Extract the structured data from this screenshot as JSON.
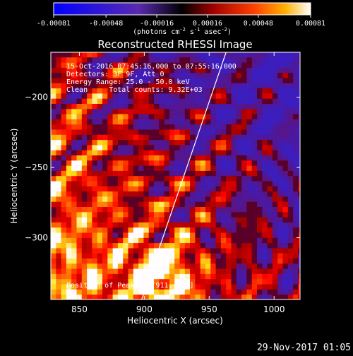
{
  "window": {
    "timestamp": "29-Nov-2017 01:05"
  },
  "colorbar": {
    "ticks": [
      "-0.00081",
      "-0.00048",
      "-0.00016",
      "0.00016",
      "0.00048",
      "0.00081"
    ],
    "range": [
      -0.00081,
      0.00081
    ],
    "units_prefix": "(photons cm",
    "units_exp1": "-2",
    "units_mid": " s",
    "units_exp2": "-1",
    "units_mid2": " asec",
    "units_exp3": "-2",
    "units_suffix": ")"
  },
  "chart_data": {
    "type": "heatmap",
    "title": "Reconstructed RHESSI Image",
    "xlabel": "Heliocentric X (arcsec)",
    "ylabel": "Heliocentric Y (arcsec)",
    "xlim": [
      828,
      1020
    ],
    "ylim": [
      -344,
      -168
    ],
    "x_ticks": [
      850,
      900,
      950,
      1000
    ],
    "y_ticks": [
      -200,
      -250,
      -300
    ],
    "limb_line": {
      "x": [
        898,
        963
      ],
      "y": [
        -344,
        -168
      ]
    },
    "annotations": [
      "15-Oct-2016 07:45:16.000 to 07:55:16.000",
      "Detectors: 3F 9F, Att 0",
      "Energy Range: 25.0 - 50.0 keV",
      "Clean     Total counts: 9.32E+03"
    ],
    "peak_label": "Position of Peak: = [911,-323]",
    "peak": {
      "x": 911,
      "y": -323
    },
    "colors": {
      "negative": "#3a1aa0",
      "zero": "#8a0000",
      "positive": "#ffffff"
    }
  }
}
